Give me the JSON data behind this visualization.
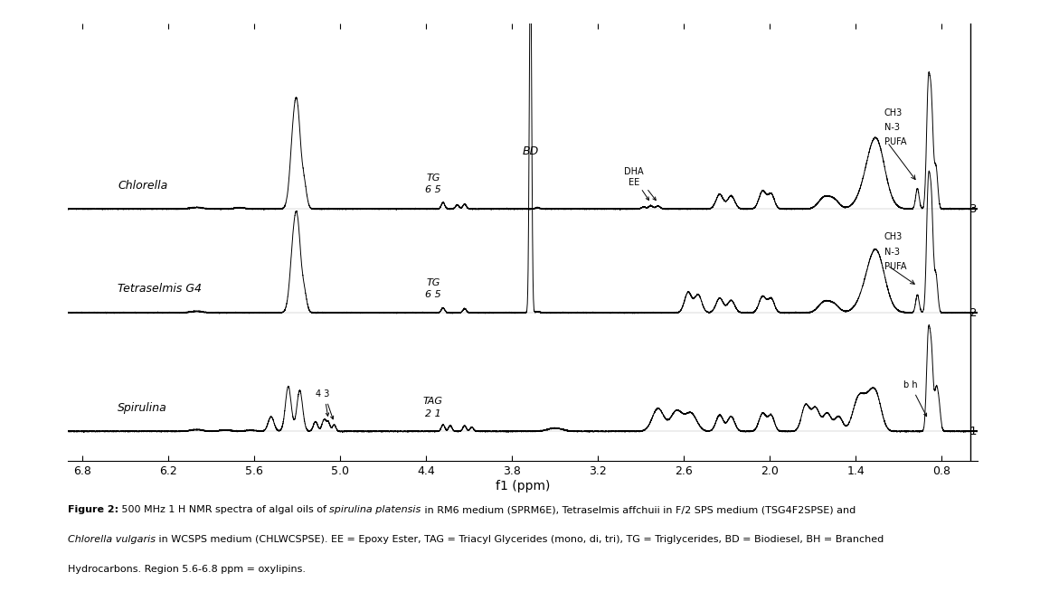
{
  "xlabel": "f1 (ppm)",
  "xlim": [
    6.9,
    0.55
  ],
  "x_ticks": [
    6.8,
    6.2,
    5.6,
    5.0,
    4.4,
    3.8,
    3.2,
    2.6,
    2.0,
    1.4,
    0.8
  ],
  "spectrum_labels": [
    "Chlorella",
    "Tetraselmis G4",
    "Spirulina"
  ],
  "spectrum_numbers": [
    "-3",
    "-2",
    "-1"
  ],
  "offsets": [
    1.55,
    0.85,
    0.05
  ],
  "scale": 0.55,
  "ylim": [
    -0.15,
    2.8
  ],
  "background_color": "#ffffff",
  "line_color": "#000000",
  "lw": 0.7,
  "fig_caption_bold": "Figure 2:",
  "fig_caption_rest": " 500 MHz 1 H NMR spectra of algal oils of ",
  "fig_caption_italic1": "spirulina platensis",
  "fig_caption_mid1": " in RM6 medium (SPRM6E), Tetraselmis affchuii in F/2 SPS medium (TSG4F2SPSE) and",
  "fig_caption_italic2": "Chlorella vulgaris",
  "fig_caption_mid2": " in WCSPS medium (CHLWCSPSE). EE = Epoxy Ester, TAG = Triacyl Glycerides (mono, di, tri), TG = Triglycerides, BD = Biodiesel, BH = Branched",
  "fig_caption_end": "Hydrocarbons. Region 5.6-6.8 ppm = oxylipins."
}
